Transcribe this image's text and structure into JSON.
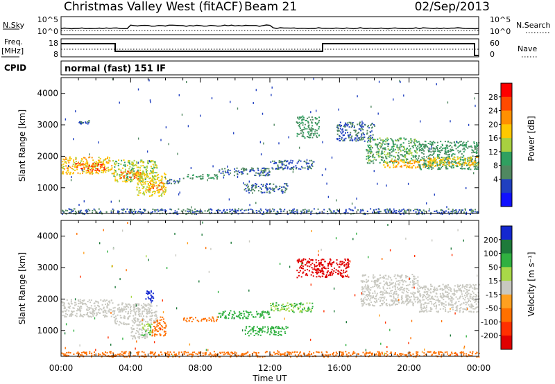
{
  "header": {
    "title": "Christmas Valley West (fitACF)",
    "beam": "Beam 21",
    "date": "02/Sep/2013"
  },
  "strips": {
    "nsky_label": "N.Sky",
    "nsky_ticks": [
      "10^5",
      "10^0"
    ],
    "nsearch_label": "N.Search",
    "nsearch_ticks": [
      "10^5",
      "10^0"
    ],
    "freq_label": "Freq.",
    "freq_unit": "[MHz]",
    "freq_ticks": [
      "18",
      "8"
    ],
    "nave_label": "Nave",
    "nave_ticks": [
      "60",
      "0"
    ],
    "cpid_label": "CPID",
    "cpid_text": "normal (fast) 151 IF"
  },
  "chart_data": [
    {
      "type": "heatmap",
      "name": "power",
      "ylabel": "Slant Range [km]",
      "yticks": [
        "4000",
        "3000",
        "2000",
        "1000"
      ],
      "ylim": [
        180,
        4500
      ],
      "xticks": [
        "00:00",
        "04:00",
        "08:00",
        "12:00",
        "16:00",
        "20:00",
        "00:00"
      ],
      "xlim_hours": [
        0,
        24
      ],
      "colorbar": {
        "label": "Power [dB]",
        "ticks": [
          "28",
          "24",
          "20",
          "16",
          "12",
          "8",
          "4"
        ],
        "colors": [
          "#ff0000",
          "#ff4a00",
          "#ff9000",
          "#ffc800",
          "#a8d040",
          "#30a060",
          "#508860",
          "#2040c0",
          "#1010ff"
        ]
      },
      "regions": [
        {
          "t0": 0.0,
          "t1": 3.0,
          "r0": 1450,
          "r1": 2000,
          "v": 20
        },
        {
          "t0": 0.8,
          "t1": 2.5,
          "r0": 1550,
          "r1": 1800,
          "v": 28
        },
        {
          "t0": 3.0,
          "t1": 5.5,
          "r0": 1200,
          "r1": 1900,
          "v": 16
        },
        {
          "t0": 3.4,
          "t1": 4.6,
          "r0": 1300,
          "r1": 1550,
          "v": 26
        },
        {
          "t0": 4.3,
          "t1": 6.0,
          "r0": 750,
          "r1": 1500,
          "v": 18
        },
        {
          "t0": 5.0,
          "t1": 5.9,
          "r0": 900,
          "r1": 1200,
          "v": 24
        },
        {
          "t0": 6.0,
          "t1": 6.8,
          "r0": 1150,
          "r1": 1300,
          "v": 6
        },
        {
          "t0": 7.0,
          "t1": 9.0,
          "r0": 1300,
          "r1": 1450,
          "v": 10
        },
        {
          "t0": 9.0,
          "t1": 12.0,
          "r0": 1400,
          "r1": 1650,
          "v": 6
        },
        {
          "t0": 10.5,
          "t1": 13.0,
          "r0": 850,
          "r1": 1150,
          "v": 6
        },
        {
          "t0": 12.0,
          "t1": 14.5,
          "r0": 1600,
          "r1": 1900,
          "v": 6
        },
        {
          "t0": 13.5,
          "t1": 14.8,
          "r0": 2600,
          "r1": 3300,
          "v": 10
        },
        {
          "t0": 1.0,
          "t1": 1.6,
          "r0": 3050,
          "r1": 3150,
          "v": 6
        },
        {
          "t0": 15.8,
          "t1": 18.0,
          "r0": 2500,
          "r1": 3100,
          "v": 6
        },
        {
          "t0": 17.5,
          "t1": 20.5,
          "r0": 1800,
          "r1": 2600,
          "v": 12
        },
        {
          "t0": 18.5,
          "t1": 21.5,
          "r0": 1650,
          "r1": 1900,
          "v": 22
        },
        {
          "t0": 20.5,
          "t1": 24.0,
          "r0": 1600,
          "r1": 2500,
          "v": 10
        },
        {
          "t0": 21.0,
          "t1": 24.0,
          "r0": 1700,
          "r1": 2000,
          "v": 20
        },
        {
          "t0": 0.0,
          "t1": 24.0,
          "r0": 180,
          "r1": 350,
          "v": 6
        }
      ]
    },
    {
      "type": "heatmap",
      "name": "velocity",
      "ylabel": "Slant Range [km]",
      "yticks": [
        "4000",
        "3000",
        "2000",
        "1000"
      ],
      "ylim": [
        180,
        4500
      ],
      "xticks": [
        "00:00",
        "04:00",
        "08:00",
        "12:00",
        "16:00",
        "20:00",
        "00:00"
      ],
      "xlim_hours": [
        0,
        24
      ],
      "xlabel": "Time UT",
      "colorbar": {
        "label": "Velocity [m s⁻¹]",
        "ticks": [
          "200",
          "100",
          "50",
          "15",
          "-15",
          "-50",
          "-100",
          "-200"
        ],
        "colors": [
          "#1428d0",
          "#1e7a3a",
          "#30b040",
          "#a8d848",
          "#c8c8c0",
          "#ffa020",
          "#ff7000",
          "#ff3000",
          "#e00000"
        ]
      },
      "regions": [
        {
          "t0": 0.0,
          "t1": 3.0,
          "r0": 1450,
          "r1": 2000,
          "v": 0
        },
        {
          "t0": 3.0,
          "t1": 5.5,
          "r0": 1200,
          "r1": 1900,
          "v": 0
        },
        {
          "t0": 4.0,
          "t1": 5.0,
          "r0": 750,
          "r1": 1200,
          "v": 0
        },
        {
          "t0": 5.2,
          "t1": 6.0,
          "r0": 850,
          "r1": 1450,
          "v": -80
        },
        {
          "t0": 4.6,
          "t1": 5.2,
          "r0": 850,
          "r1": 1250,
          "v": 30
        },
        {
          "t0": 4.8,
          "t1": 5.3,
          "r0": 1900,
          "r1": 2300,
          "v": 220
        },
        {
          "t0": 7.0,
          "t1": 9.0,
          "r0": 1300,
          "r1": 1450,
          "v": -60
        },
        {
          "t0": 9.0,
          "t1": 12.0,
          "r0": 1400,
          "r1": 1650,
          "v": 60
        },
        {
          "t0": 10.5,
          "t1": 13.0,
          "r0": 850,
          "r1": 1150,
          "v": 60
        },
        {
          "t0": 12.0,
          "t1": 14.5,
          "r0": 1600,
          "r1": 1900,
          "v": 30
        },
        {
          "t0": 13.5,
          "t1": 16.5,
          "r0": 2700,
          "r1": 3300,
          "v": -210
        },
        {
          "t0": 17.2,
          "t1": 20.5,
          "r0": 1800,
          "r1": 2800,
          "v": 0
        },
        {
          "t0": 20.5,
          "t1": 24.0,
          "r0": 1600,
          "r1": 2500,
          "v": 0
        },
        {
          "t0": 0.0,
          "t1": 24.0,
          "r0": 180,
          "r1": 350,
          "v": -60
        }
      ]
    }
  ]
}
